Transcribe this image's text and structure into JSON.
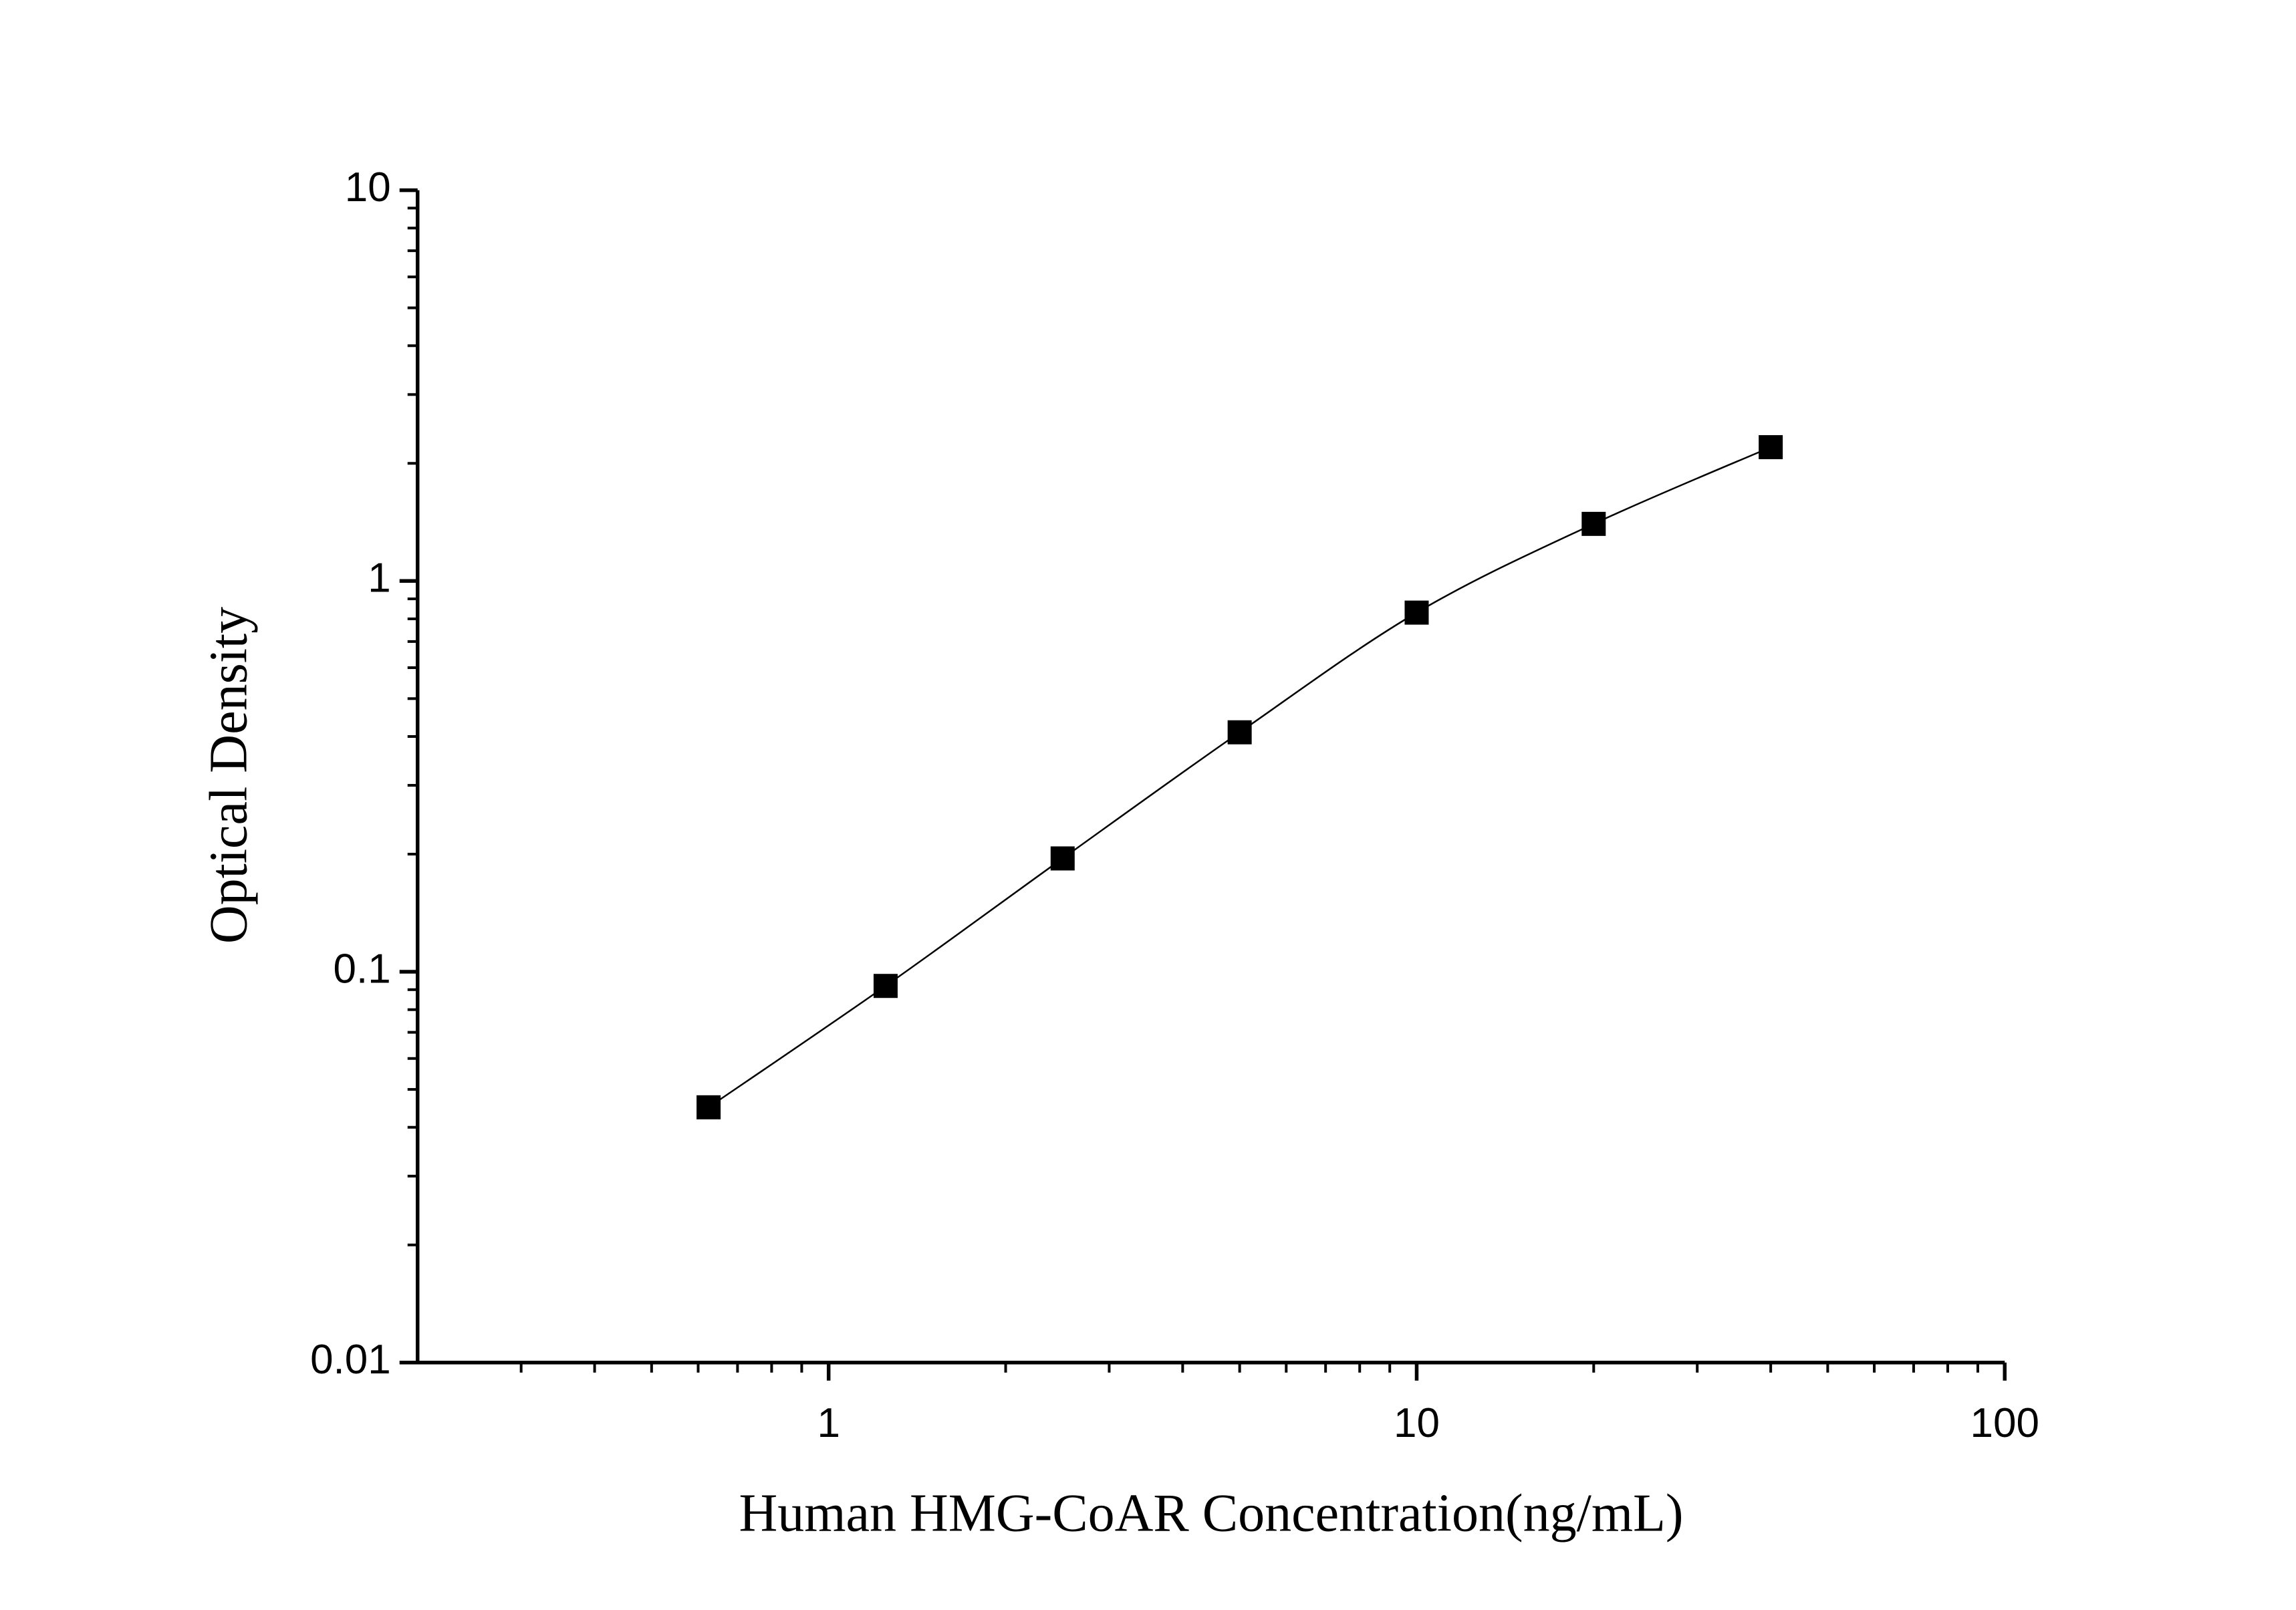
{
  "chart_data": {
    "type": "scatter",
    "x_label": "Human HMG-CoAR Concentration(ng/mL)",
    "y_label": "Optical Density",
    "x": [
      0.625,
      1.25,
      2.5,
      5,
      10,
      20,
      40
    ],
    "values": [
      0.045,
      0.092,
      0.195,
      0.41,
      0.83,
      1.4,
      2.2
    ],
    "color": "#000000",
    "fit_line": true,
    "xscale": "log",
    "yscale": "log",
    "xlim": [
      0.2,
      100
    ],
    "ylim": [
      0.01,
      10
    ],
    "xticks": [
      1,
      10,
      100
    ],
    "yticks": [
      0.01,
      0.1,
      1,
      10
    ]
  }
}
